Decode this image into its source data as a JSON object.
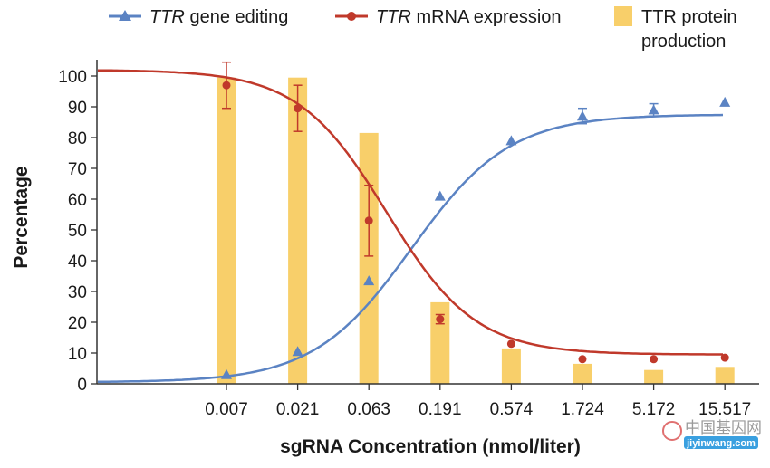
{
  "chart_data": {
    "type": "bar+line",
    "xlabel": "sgRNA Concentration (nmol/liter)",
    "ylabel": "Percentage",
    "ylim": [
      0,
      100
    ],
    "yticks": [
      0,
      10,
      20,
      30,
      40,
      50,
      60,
      70,
      80,
      90,
      100
    ],
    "categories": [
      "0.007",
      "0.021",
      "0.063",
      "0.191",
      "0.574",
      "1.724",
      "5.172",
      "15.517"
    ],
    "legend_placement": "top",
    "grid": false,
    "series": [
      {
        "name_parts": [
          {
            "text": "TTR",
            "italic": true
          },
          {
            "text": " gene editing",
            "italic": false
          }
        ],
        "kind": "line",
        "marker": "triangle",
        "color": "#5b83c3",
        "values": [
          3,
          10.5,
          33.5,
          61,
          79,
          87,
          89,
          91.5
        ],
        "error": [
          null,
          null,
          null,
          null,
          null,
          2.5,
          2,
          null
        ],
        "fit": {
          "bottom": 0.5,
          "top": 87.5,
          "ec50_index": 2.6,
          "slope": 1.45
        }
      },
      {
        "name_parts": [
          {
            "text": "TTR",
            "italic": true
          },
          {
            "text": " mRNA expression",
            "italic": false
          }
        ],
        "kind": "line",
        "marker": "circle",
        "color": "#c0392b",
        "values": [
          97,
          89.5,
          53,
          21,
          13,
          8,
          8,
          8.5
        ],
        "error": [
          7.5,
          7.5,
          11.5,
          1.5,
          null,
          null,
          null,
          null
        ],
        "fit": {
          "bottom": 9.5,
          "top": 102,
          "ec50_index": 2.25,
          "slope": 1.6
        }
      },
      {
        "name_parts": [
          {
            "text": "TTR protein",
            "italic": false
          },
          {
            "text": "production",
            "italic": false
          }
        ],
        "kind": "bar",
        "color": "#f8cf6a",
        "values": [
          99.5,
          99.5,
          81.5,
          26.5,
          11.5,
          6.5,
          4.5,
          5.5
        ]
      }
    ]
  },
  "watermark": {
    "text": "中国基因网",
    "url": "jiyinwang.com"
  }
}
